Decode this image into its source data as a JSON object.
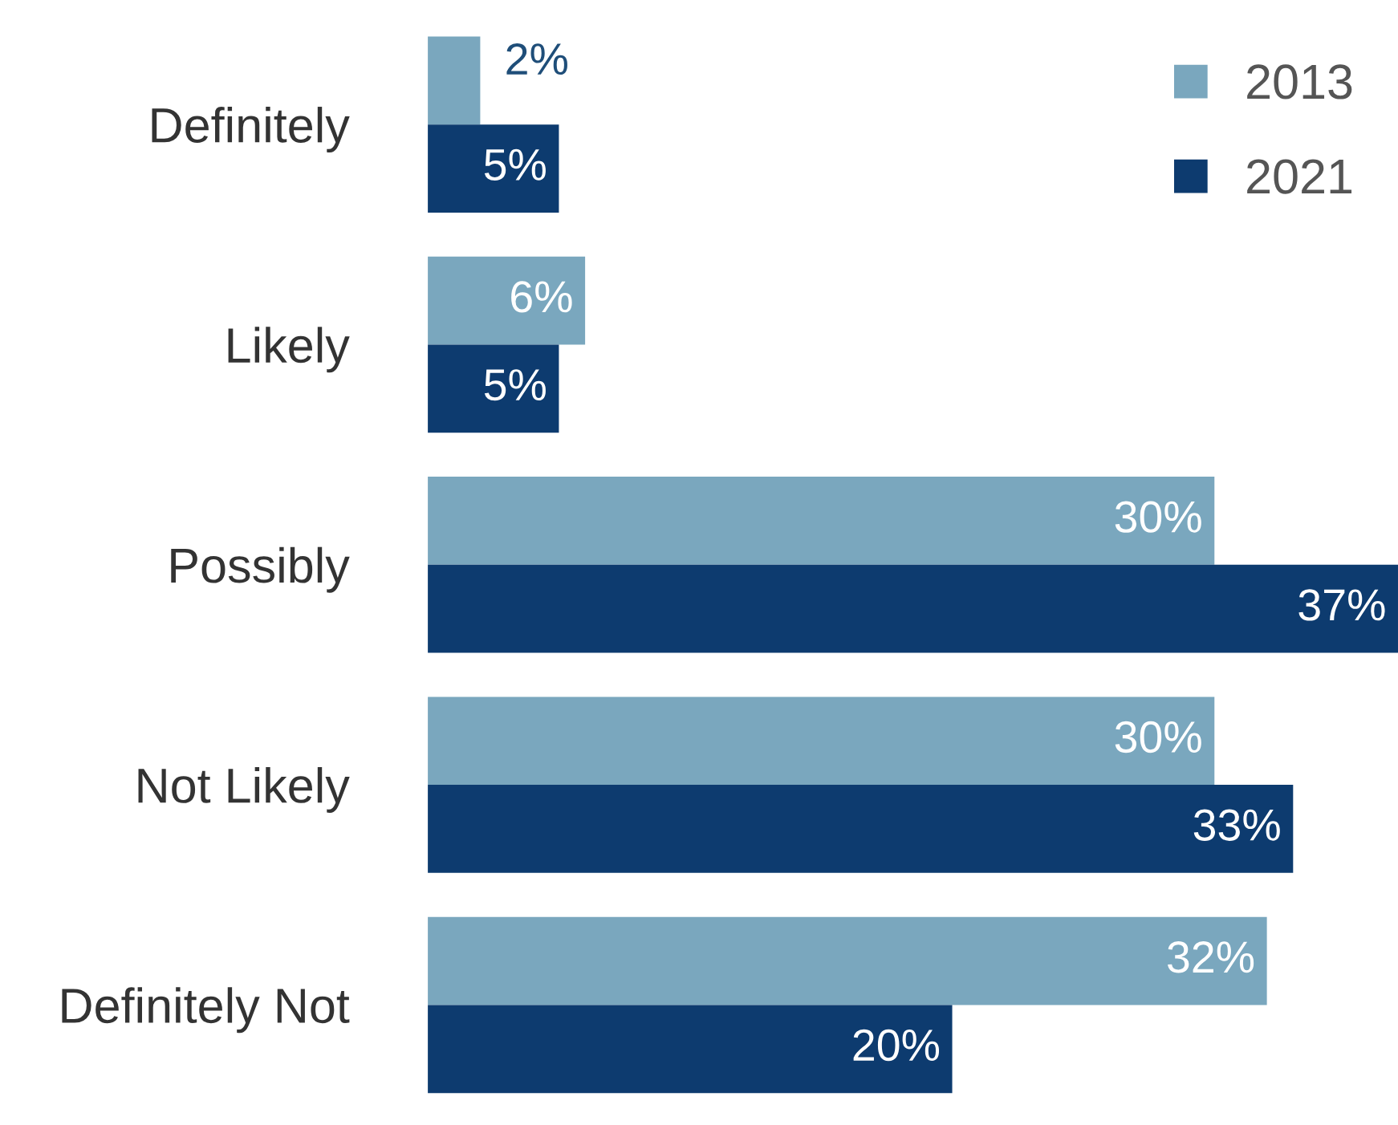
{
  "chart_data": {
    "type": "bar",
    "orientation": "horizontal",
    "categories": [
      "Definitely",
      "Likely",
      "Possibly",
      "Not Likely",
      "Definitely Not"
    ],
    "series": [
      {
        "name": "2013",
        "color": "#7aa7be",
        "values": [
          2,
          6,
          30,
          30,
          32
        ],
        "value_labels": [
          "2%",
          "6%",
          "30%",
          "30%",
          "32%"
        ]
      },
      {
        "name": "2021",
        "color": "#0d3b6f",
        "values": [
          5,
          5,
          37,
          33,
          20
        ],
        "value_labels": [
          "5%",
          "5%",
          "37%",
          "33%",
          "20%"
        ]
      }
    ],
    "legend": "top right",
    "grid": false
  }
}
